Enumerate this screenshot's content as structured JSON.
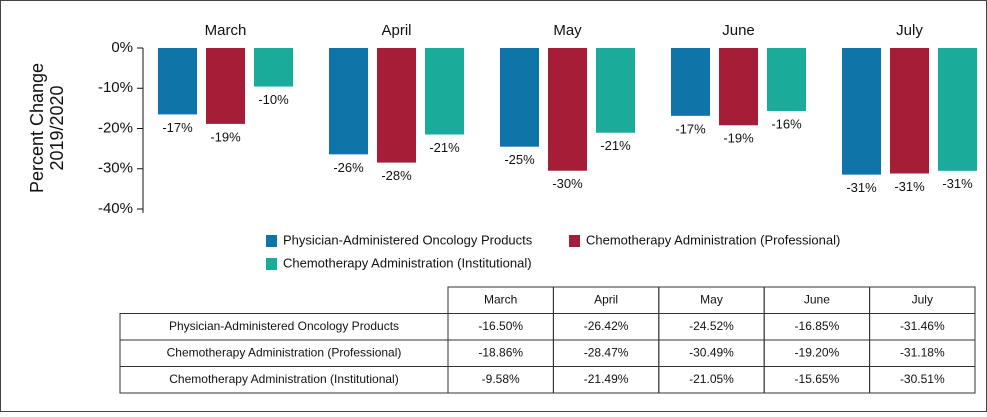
{
  "chart_data": {
    "type": "bar",
    "y_label": "Percent Change 2019/2020",
    "categories": [
      "March",
      "April",
      "May",
      "June",
      "July"
    ],
    "series": [
      {
        "name": "Physician-Administered Oncology Products",
        "color": "#0f75a8",
        "values": [
          -16.5,
          -26.42,
          -24.52,
          -16.85,
          -31.46
        ],
        "value_labels": [
          "-17%",
          "-26%",
          "-25%",
          "-17%",
          "-31%"
        ]
      },
      {
        "name": "Chemotherapy Administration (Professional)",
        "color": "#a51d36",
        "values": [
          -18.86,
          -28.47,
          -30.49,
          -19.2,
          -31.18
        ],
        "value_labels": [
          "-19%",
          "-28%",
          "-30%",
          "-19%",
          "-31%"
        ]
      },
      {
        "name": "Chemotherapy Administration (Institutional)",
        "color": "#1aab9b",
        "values": [
          -9.58,
          -21.49,
          -21.05,
          -15.65,
          -30.51
        ],
        "value_labels": [
          "-10%",
          "-21%",
          "-21%",
          "-16%",
          "-31%"
        ]
      }
    ],
    "ylim": [
      -40,
      0
    ],
    "yticks": [
      {
        "value": 0,
        "label": "0%"
      },
      {
        "value": -10,
        "label": "-10%"
      },
      {
        "value": -20,
        "label": "-20%"
      },
      {
        "value": -30,
        "label": "-30%"
      },
      {
        "value": -40,
        "label": "-40%"
      }
    ],
    "grid": false
  },
  "table": {
    "columns": [
      "March",
      "April",
      "May",
      "June",
      "July"
    ],
    "rows": [
      {
        "label": "Physician-Administered Oncology Products",
        "cells": [
          "-16.50%",
          "-26.42%",
          "-24.52%",
          "-16.85%",
          "-31.46%"
        ]
      },
      {
        "label": "Chemotherapy Administration (Professional)",
        "cells": [
          "-18.86%",
          "-28.47%",
          "-30.49%",
          "-19.20%",
          "-31.18%"
        ]
      },
      {
        "label": "Chemotherapy Administration (Institutional)",
        "cells": [
          "-9.58%",
          "-21.49%",
          "-21.05%",
          "-15.65%",
          "-30.51%"
        ]
      }
    ]
  }
}
